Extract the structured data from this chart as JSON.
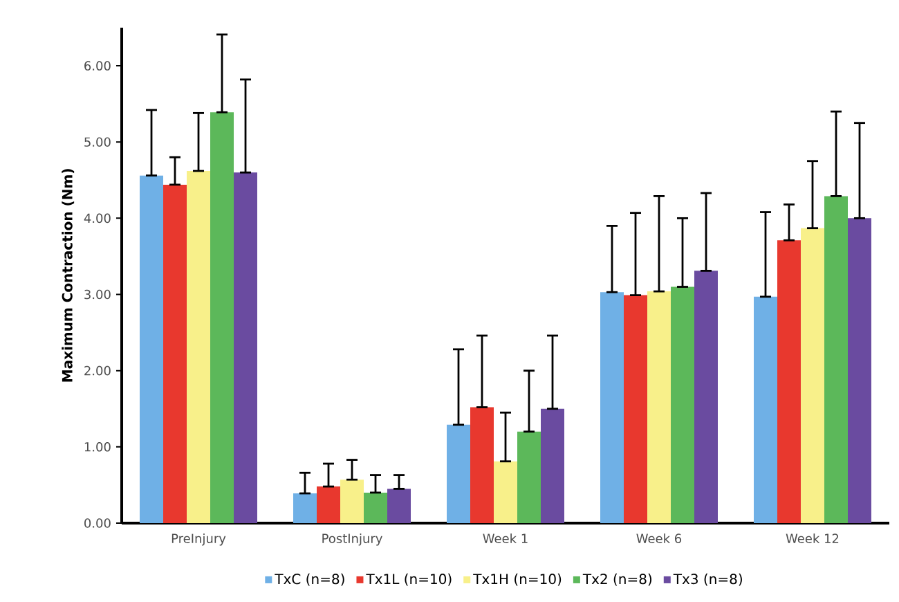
{
  "chart_data": {
    "type": "bar",
    "ylabel": "Maximum Contraction (Nm)",
    "categories": [
      "PreInjury",
      "PostInjury",
      "Week 1",
      "Week 6",
      "Week 12"
    ],
    "series": [
      {
        "name": "TxC (n=8)",
        "color": "#6fb0e6",
        "values": [
          4.56,
          0.39,
          1.29,
          3.03,
          2.97
        ],
        "errors": [
          [
            4.56,
            5.42
          ],
          [
            0.39,
            0.66
          ],
          [
            1.29,
            2.28
          ],
          [
            3.03,
            3.9
          ],
          [
            2.97,
            4.08
          ]
        ]
      },
      {
        "name": "Tx1L (n=10)",
        "color": "#e8382e",
        "values": [
          4.44,
          0.48,
          1.52,
          2.99,
          3.71
        ],
        "errors": [
          [
            4.44,
            4.8
          ],
          [
            0.48,
            0.78
          ],
          [
            1.52,
            2.46
          ],
          [
            2.99,
            4.07
          ],
          [
            3.71,
            4.18
          ]
        ]
      },
      {
        "name": "Tx1H (n=10)",
        "color": "#f8f08a",
        "values": [
          4.62,
          0.57,
          0.81,
          3.04,
          3.87
        ],
        "errors": [
          [
            4.62,
            5.38
          ],
          [
            0.57,
            0.83
          ],
          [
            0.81,
            1.45
          ],
          [
            3.04,
            4.29
          ],
          [
            3.87,
            4.75
          ]
        ]
      },
      {
        "name": "Tx2 (n=8)",
        "color": "#5cb85a",
        "values": [
          5.39,
          0.4,
          1.2,
          3.1,
          4.29
        ],
        "errors": [
          [
            5.39,
            6.41
          ],
          [
            0.4,
            0.63
          ],
          [
            1.2,
            2.0
          ],
          [
            3.1,
            4.0
          ],
          [
            4.29,
            5.4
          ]
        ]
      },
      {
        "name": "Tx3 (n=8)",
        "color": "#6a4ba0",
        "values": [
          4.6,
          0.45,
          1.5,
          3.31,
          4.0
        ],
        "errors": [
          [
            4.6,
            5.82
          ],
          [
            0.45,
            0.63
          ],
          [
            1.5,
            2.46
          ],
          [
            3.31,
            4.33
          ],
          [
            4.0,
            5.25
          ]
        ]
      }
    ],
    "ylim": [
      0,
      6.5
    ],
    "yticks": [
      {
        "value": 0,
        "label": "0.00"
      },
      {
        "value": 1,
        "label": "1.00"
      },
      {
        "value": 2,
        "label": "2.00"
      },
      {
        "value": 3,
        "label": "3.00"
      },
      {
        "value": 4,
        "label": "4.00"
      },
      {
        "value": 5,
        "label": "5.00"
      },
      {
        "value": 6,
        "label": "6.00"
      }
    ],
    "legend": "bottom"
  }
}
